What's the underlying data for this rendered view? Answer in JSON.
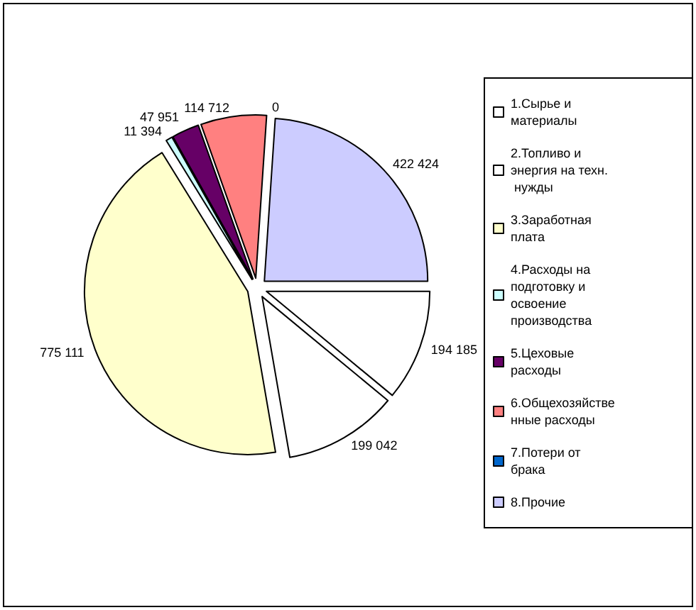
{
  "chart_data": {
    "type": "pie",
    "categories": [
      "1.Сырье и материалы",
      "2.Топливо и энергия на техн. нужды",
      "3.Заработная плата",
      "4.Расходы на подготовку и освоение производства",
      "5.Цеховые расходы",
      "6.Общехозяйственные расходы",
      "7.Потери от брака",
      "8.Прочие"
    ],
    "values": [
      194185,
      199042,
      775111,
      11394,
      47951,
      114712,
      0,
      422424
    ],
    "value_labels": [
      "194 185",
      "199 042",
      "775 111",
      "11 394",
      "47 951",
      "114 712",
      "0",
      "422 424"
    ],
    "colors": [
      "#ffffff",
      "#ffffff",
      "#ffffcc",
      "#ccffff",
      "#660066",
      "#ff8080",
      "#0066cc",
      "#ccccff"
    ],
    "legend": "right"
  }
}
